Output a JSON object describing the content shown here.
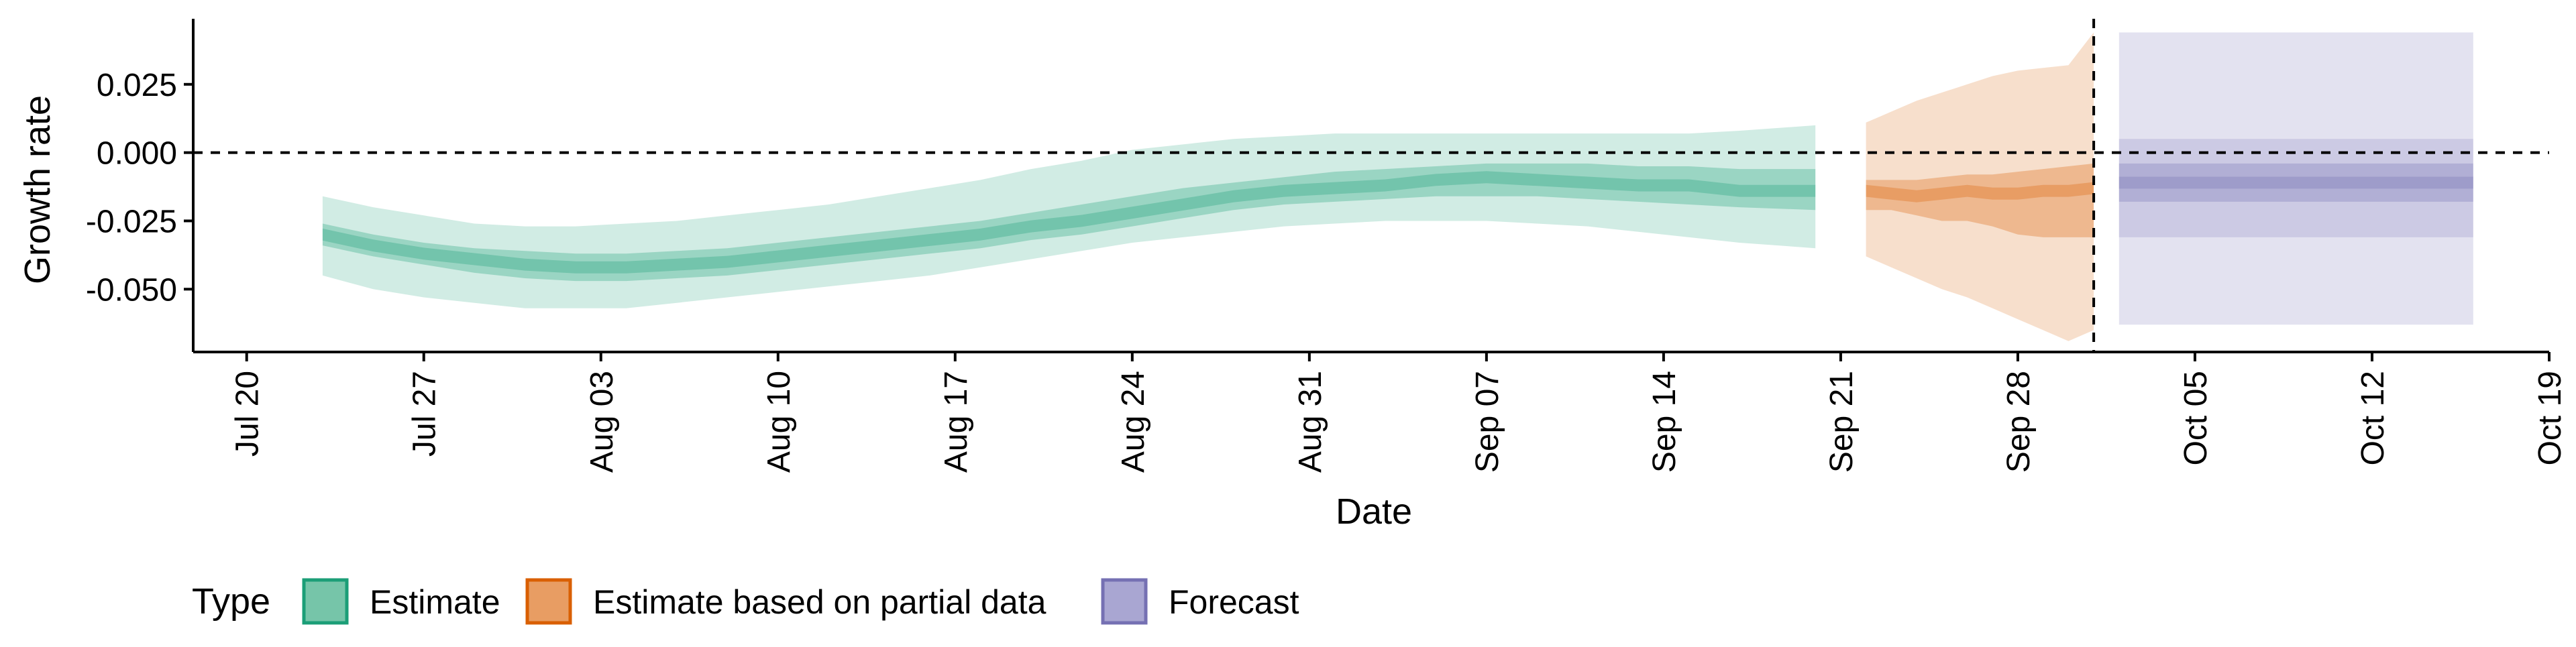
{
  "chart_data": {
    "type": "area",
    "xlabel": "Date",
    "ylabel": "Growth rate",
    "x_tick_labels": [
      "Jul 20",
      "Jul 27",
      "Aug 03",
      "Aug 10",
      "Aug 17",
      "Aug 24",
      "Aug 31",
      "Sep 07",
      "Sep 14",
      "Sep 21",
      "Sep 28",
      "Oct 05",
      "Oct 12",
      "Oct 19"
    ],
    "x_tick_dates": [
      "2020-07-20",
      "2020-07-27",
      "2020-08-03",
      "2020-08-10",
      "2020-08-17",
      "2020-08-24",
      "2020-08-31",
      "2020-09-07",
      "2020-09-14",
      "2020-09-21",
      "2020-09-28",
      "2020-10-05",
      "2020-10-12",
      "2020-10-19"
    ],
    "xlim": [
      "2020-07-19",
      "2020-10-19"
    ],
    "y_tick_labels": [
      "0.025",
      "0.000",
      "-0.025",
      "-0.050"
    ],
    "y_tick_values": [
      0.025,
      0.0,
      -0.025,
      -0.05
    ],
    "ylim": [
      -0.073,
      0.049
    ],
    "horizontal_reference_line": 0.0,
    "vertical_reference_date": "2020-10-01",
    "legend": {
      "title": "Type",
      "position": "bottom-left",
      "entries": [
        "Estimate",
        "Estimate based on partial data",
        "Forecast"
      ]
    },
    "colors": {
      "Estimate": "#1b9e77",
      "Estimate based on partial data": "#d95f02",
      "Forecast": "#7570b3",
      "legend_fill_Estimate": "#76c5a9",
      "legend_fill_Estimate based on partial data": "#e89d63",
      "legend_fill_Forecast": "#a9a6d2"
    },
    "series": [
      {
        "name": "Estimate",
        "x": [
          "2020-07-23",
          "2020-07-25",
          "2020-07-27",
          "2020-07-29",
          "2020-07-31",
          "2020-08-02",
          "2020-08-04",
          "2020-08-06",
          "2020-08-08",
          "2020-08-10",
          "2020-08-12",
          "2020-08-14",
          "2020-08-16",
          "2020-08-18",
          "2020-08-20",
          "2020-08-22",
          "2020-08-24",
          "2020-08-26",
          "2020-08-28",
          "2020-08-30",
          "2020-09-01",
          "2020-09-03",
          "2020-09-05",
          "2020-09-07",
          "2020-09-09",
          "2020-09-11",
          "2020-09-13",
          "2020-09-15",
          "2020-09-17",
          "2020-09-20"
        ],
        "median": [
          -0.03,
          -0.034,
          -0.037,
          -0.039,
          -0.041,
          -0.042,
          -0.042,
          -0.041,
          -0.04,
          -0.038,
          -0.036,
          -0.034,
          -0.032,
          -0.03,
          -0.027,
          -0.025,
          -0.022,
          -0.019,
          -0.016,
          -0.014,
          -0.013,
          -0.012,
          -0.01,
          -0.009,
          -0.01,
          -0.011,
          -0.012,
          -0.012,
          -0.014,
          -0.014
        ],
        "lower_50": [
          -0.034,
          -0.038,
          -0.041,
          -0.044,
          -0.046,
          -0.047,
          -0.047,
          -0.046,
          -0.045,
          -0.043,
          -0.041,
          -0.039,
          -0.037,
          -0.035,
          -0.032,
          -0.03,
          -0.027,
          -0.024,
          -0.021,
          -0.019,
          -0.018,
          -0.017,
          -0.016,
          -0.016,
          -0.016,
          -0.017,
          -0.018,
          -0.019,
          -0.02,
          -0.021
        ],
        "upper_50": [
          -0.026,
          -0.03,
          -0.033,
          -0.035,
          -0.036,
          -0.037,
          -0.037,
          -0.036,
          -0.035,
          -0.033,
          -0.031,
          -0.029,
          -0.027,
          -0.025,
          -0.022,
          -0.019,
          -0.016,
          -0.013,
          -0.011,
          -0.009,
          -0.007,
          -0.006,
          -0.005,
          -0.004,
          -0.004,
          -0.004,
          -0.005,
          -0.005,
          -0.006,
          -0.006
        ],
        "lower_90": [
          -0.045,
          -0.05,
          -0.053,
          -0.055,
          -0.057,
          -0.057,
          -0.057,
          -0.055,
          -0.053,
          -0.051,
          -0.049,
          -0.047,
          -0.045,
          -0.042,
          -0.039,
          -0.036,
          -0.033,
          -0.031,
          -0.029,
          -0.027,
          -0.026,
          -0.025,
          -0.025,
          -0.025,
          -0.026,
          -0.027,
          -0.029,
          -0.031,
          -0.033,
          -0.035
        ],
        "upper_90": [
          -0.016,
          -0.02,
          -0.023,
          -0.026,
          -0.027,
          -0.027,
          -0.026,
          -0.025,
          -0.023,
          -0.021,
          -0.019,
          -0.016,
          -0.013,
          -0.01,
          -0.006,
          -0.003,
          0.001,
          0.003,
          0.005,
          0.006,
          0.007,
          0.007,
          0.007,
          0.007,
          0.007,
          0.007,
          0.007,
          0.007,
          0.008,
          0.01
        ]
      },
      {
        "name": "Estimate based on partial data",
        "x": [
          "2020-09-22",
          "2020-09-23",
          "2020-09-24",
          "2020-09-25",
          "2020-09-26",
          "2020-09-27",
          "2020-09-28",
          "2020-09-29",
          "2020-09-30",
          "2020-10-01"
        ],
        "median": [
          -0.014,
          -0.015,
          -0.016,
          -0.015,
          -0.014,
          -0.015,
          -0.015,
          -0.014,
          -0.014,
          -0.013
        ],
        "lower_50": [
          -0.021,
          -0.021,
          -0.023,
          -0.025,
          -0.025,
          -0.027,
          -0.03,
          -0.031,
          -0.031,
          -0.031
        ],
        "upper_50": [
          -0.01,
          -0.01,
          -0.01,
          -0.009,
          -0.008,
          -0.008,
          -0.007,
          -0.006,
          -0.005,
          -0.004
        ],
        "lower_90": [
          -0.038,
          -0.042,
          -0.046,
          -0.05,
          -0.053,
          -0.057,
          -0.061,
          -0.065,
          -0.069,
          -0.065
        ],
        "upper_90": [
          0.011,
          0.015,
          0.019,
          0.022,
          0.025,
          0.028,
          0.03,
          0.031,
          0.032,
          0.044
        ]
      },
      {
        "name": "Forecast",
        "x": [
          "2020-10-02",
          "2020-10-16"
        ],
        "median": [
          -0.011,
          -0.011
        ],
        "lower_50": [
          -0.018,
          -0.018
        ],
        "upper_50": [
          -0.004,
          -0.004
        ],
        "lower_90": [
          -0.031,
          -0.031
        ],
        "upper_90": [
          0.005,
          0.005
        ],
        "lower_outer": [
          -0.063,
          -0.063
        ],
        "upper_outer": [
          0.044,
          0.044
        ]
      }
    ]
  }
}
